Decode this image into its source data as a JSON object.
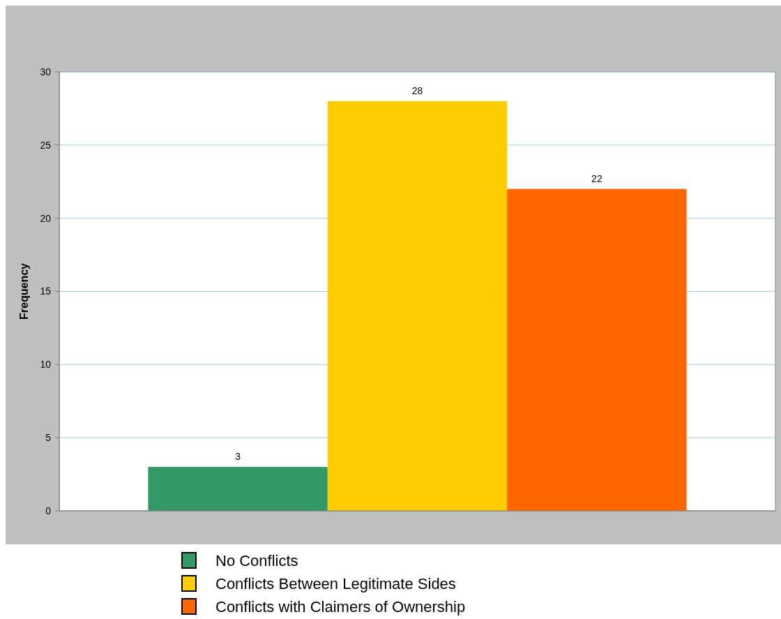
{
  "chart_data": {
    "type": "bar",
    "categories": [
      null
    ],
    "ylabel": "Frequency",
    "ylim": [
      0,
      30
    ],
    "yticks": [
      0,
      5,
      10,
      15,
      20,
      25,
      30
    ],
    "grid": "y",
    "legend": "bottom",
    "data_labels": true,
    "series": [
      {
        "name": "No Conflicts",
        "color": "#339966",
        "values": [
          3
        ]
      },
      {
        "name": "Conflicts Between Legitimate Sides",
        "color": "#ffcc00",
        "values": [
          28
        ]
      },
      {
        "name": "Conflicts with Claimers of Ownership",
        "color": "#ff6600",
        "values": [
          22
        ]
      }
    ]
  }
}
